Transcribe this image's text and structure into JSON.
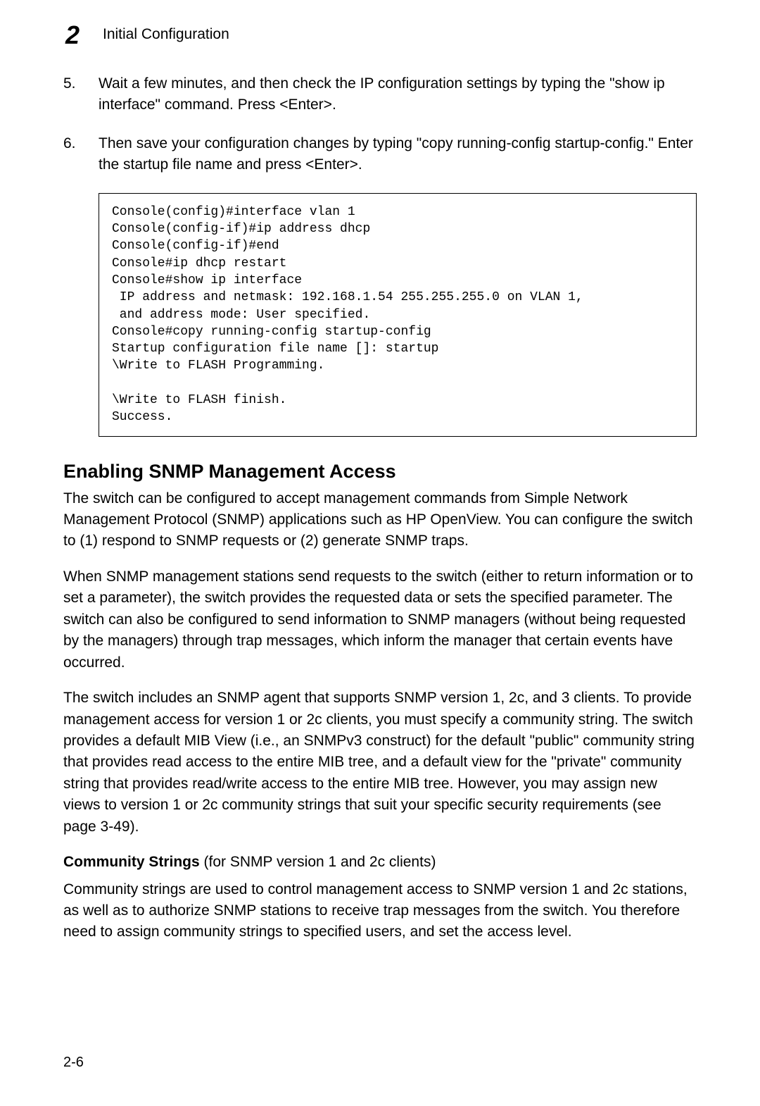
{
  "header": {
    "chapter_number_glyph": "2",
    "title": "Initial Configuration"
  },
  "steps": [
    {
      "num": "5.",
      "text": "Wait a few minutes, and then check the IP configuration settings by typing the \"show ip interface\" command. Press <Enter>."
    },
    {
      "num": "6.",
      "text": "Then save your configuration changes by typing \"copy running-config startup-config.\" Enter the startup file name and press <Enter>."
    }
  ],
  "code_block": "Console(config)#interface vlan 1\nConsole(config-if)#ip address dhcp\nConsole(config-if)#end\nConsole#ip dhcp restart\nConsole#show ip interface\n IP address and netmask: 192.168.1.54 255.255.255.0 on VLAN 1,\n and address mode: User specified.\nConsole#copy running-config startup-config\nStartup configuration file name []: startup\n\\Write to FLASH Programming.\n\n\\Write to FLASH finish.\nSuccess.\n",
  "section": {
    "heading": "Enabling SNMP Management Access",
    "paragraphs": [
      "The switch can be configured to accept management commands from Simple Network Management Protocol (SNMP) applications such as HP OpenView. You can configure the switch to (1) respond to SNMP requests or (2) generate SNMP traps.",
      "When SNMP management stations send requests to the switch (either to return information or to set a parameter), the switch provides the requested data or sets the specified parameter. The switch can also be configured to send information to SNMP managers (without being requested by the managers) through trap messages, which inform the manager that certain events have occurred.",
      "The switch includes an SNMP agent that supports SNMP version 1, 2c, and 3 clients. To provide management access for version 1 or 2c clients, you must specify a community string. The switch provides a default MIB View (i.e., an SNMPv3 construct) for the default \"public\" community string that provides read access to the entire MIB tree, and a default view for the \"private\" community string that provides read/write access to the entire MIB tree. However, you may assign new views to version 1 or 2c community strings that suit your specific security requirements (see page 3-49)."
    ],
    "subheading_bold": "Community Strings",
    "subheading_rest": " (for SNMP version 1 and 2c clients)",
    "sub_paragraph": "Community strings are used to control management access to SNMP version 1 and 2c stations, as well as to authorize SNMP stations to receive trap messages from the switch. You therefore need to assign community strings to specified users, and set the access level."
  },
  "page_number": "2-6"
}
